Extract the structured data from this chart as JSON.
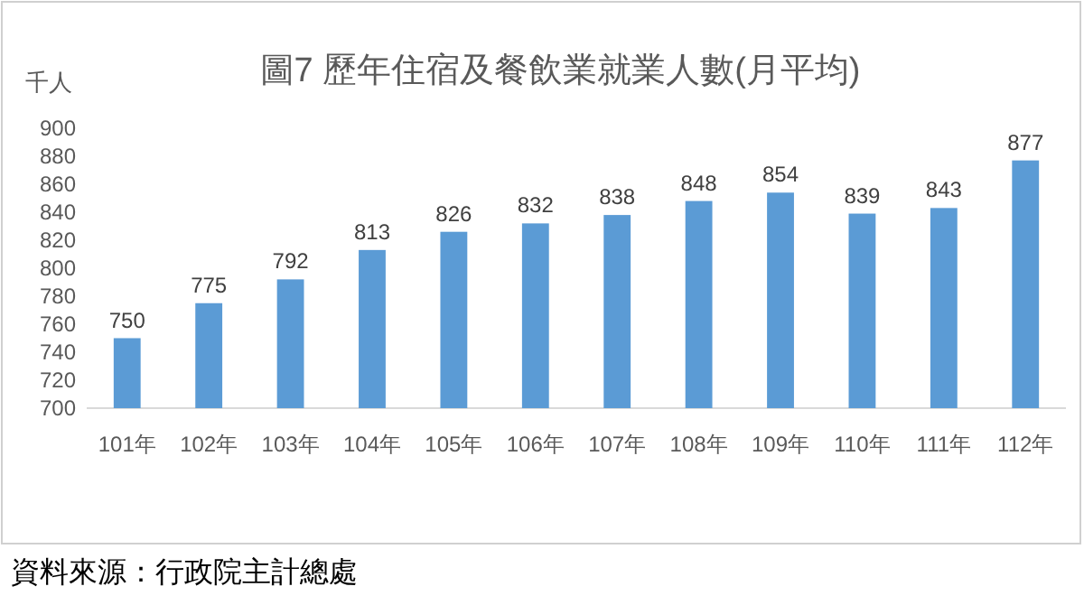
{
  "chart_data": {
    "type": "bar",
    "title": "圖7  歷年住宿及餐飲業就業人數(月平均)",
    "ylabel": "千人",
    "categories": [
      "101年",
      "102年",
      "103年",
      "104年",
      "105年",
      "106年",
      "107年",
      "108年",
      "109年",
      "110年",
      "111年",
      "112年"
    ],
    "values": [
      750,
      775,
      792,
      813,
      826,
      832,
      838,
      848,
      854,
      839,
      843,
      877
    ],
    "color": "#5b9bd5",
    "ylim": [
      700,
      900
    ],
    "yticks": [
      700,
      720,
      740,
      760,
      780,
      800,
      820,
      840,
      860,
      880,
      900
    ],
    "data_labels": true,
    "grid": false,
    "annotations": [
      "資料來源：行政院主計總處"
    ]
  }
}
